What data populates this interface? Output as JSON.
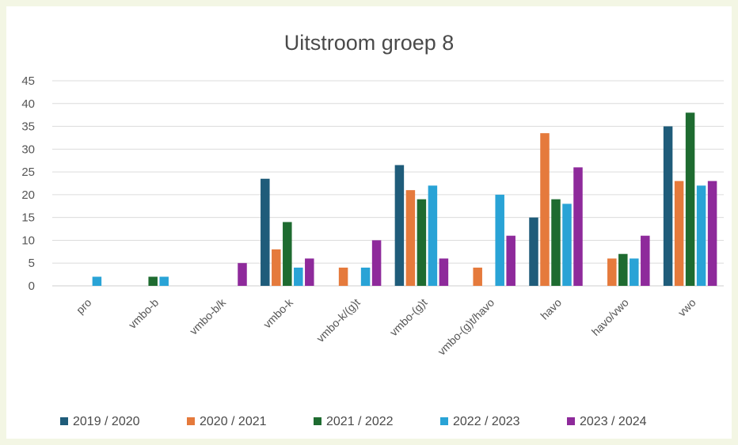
{
  "chart_data": {
    "type": "bar",
    "title": "Uitstroom groep 8",
    "xlabel": "",
    "ylabel": "",
    "ylim": [
      0,
      45
    ],
    "yticks": [
      0,
      5,
      10,
      15,
      20,
      25,
      30,
      35,
      40,
      45
    ],
    "grid": true,
    "legend_position": "bottom",
    "categories": [
      "pro",
      "vmbo-b",
      "vmbo-b/k",
      "vmbo-k",
      "vmbo-k/(g)t",
      "vmbo-(g)t",
      "vmbo-(g)t/havo",
      "havo",
      "havo/vwo",
      "vwo"
    ],
    "series": [
      {
        "name": "2019 / 2020",
        "color": "#1f5c7a",
        "values": [
          0,
          0,
          0,
          23.5,
          0,
          26.5,
          0,
          15,
          0,
          35
        ]
      },
      {
        "name": "2020 / 2021",
        "color": "#e57a3c",
        "values": [
          0,
          0,
          0,
          8,
          4,
          21,
          4,
          33.5,
          6,
          23
        ]
      },
      {
        "name": "2021 / 2022",
        "color": "#1e6b30",
        "values": [
          0,
          2,
          0,
          14,
          0,
          19,
          0,
          19,
          7,
          38
        ]
      },
      {
        "name": "2022 / 2023",
        "color": "#29a3d6",
        "values": [
          2,
          2,
          0,
          4,
          4,
          22,
          20,
          18,
          6,
          22
        ]
      },
      {
        "name": "2023 / 2024",
        "color": "#8e2a9b",
        "values": [
          0,
          0,
          5,
          6,
          10,
          6,
          11,
          26,
          11,
          23
        ]
      }
    ]
  }
}
